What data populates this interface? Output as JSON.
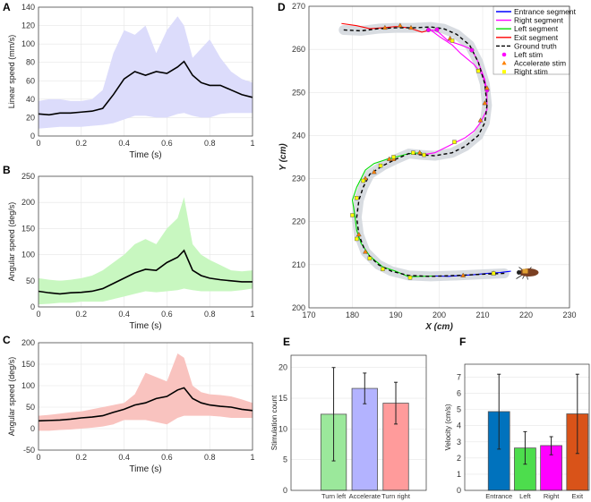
{
  "chart_data": [
    {
      "panel": "A",
      "type": "line",
      "xlabel": "Time (s)",
      "ylabel": "Linear speed (mm/s)",
      "xlim": [
        0,
        1
      ],
      "ylim": [
        0,
        140
      ],
      "xticks": [
        0,
        0.2,
        0.4,
        0.6,
        0.8,
        1
      ],
      "yticks": [
        0,
        20,
        40,
        60,
        80,
        100,
        120,
        140
      ],
      "grid": true,
      "band_color": "#dcdcfb",
      "line_color": "#000000",
      "x": [
        0,
        0.05,
        0.1,
        0.15,
        0.2,
        0.25,
        0.3,
        0.35,
        0.4,
        0.45,
        0.5,
        0.55,
        0.6,
        0.65,
        0.68,
        0.72,
        0.76,
        0.8,
        0.85,
        0.9,
        0.95,
        1
      ],
      "mean": [
        24,
        23,
        25,
        25,
        26,
        27,
        30,
        45,
        62,
        70,
        66,
        70,
        68,
        75,
        81,
        66,
        58,
        55,
        55,
        50,
        45,
        42
      ],
      "upper": [
        38,
        40,
        40,
        38,
        38,
        40,
        50,
        90,
        115,
        110,
        120,
        90,
        115,
        130,
        120,
        85,
        95,
        105,
        85,
        70,
        62,
        58
      ],
      "lower": [
        8,
        9,
        10,
        10,
        10,
        11,
        12,
        14,
        18,
        22,
        22,
        20,
        20,
        24,
        25,
        22,
        20,
        20,
        24,
        25,
        25,
        25
      ]
    },
    {
      "panel": "B",
      "type": "line",
      "xlabel": "Time (s)",
      "ylabel": "Angular speed (deg/s)",
      "xlim": [
        0,
        1
      ],
      "ylim": [
        0,
        250
      ],
      "xticks": [
        0,
        0.2,
        0.4,
        0.6,
        0.8,
        1
      ],
      "yticks": [
        0,
        50,
        100,
        150,
        200,
        250
      ],
      "grid": true,
      "band_color": "#c8f7c0",
      "line_color": "#000000",
      "x": [
        0,
        0.05,
        0.1,
        0.15,
        0.2,
        0.25,
        0.3,
        0.35,
        0.4,
        0.45,
        0.5,
        0.55,
        0.6,
        0.65,
        0.68,
        0.72,
        0.76,
        0.8,
        0.85,
        0.9,
        0.95,
        1
      ],
      "mean": [
        30,
        27,
        25,
        27,
        28,
        30,
        35,
        45,
        55,
        65,
        72,
        70,
        85,
        95,
        108,
        70,
        60,
        55,
        52,
        50,
        48,
        48
      ],
      "upper": [
        55,
        52,
        50,
        52,
        55,
        60,
        70,
        85,
        100,
        120,
        130,
        120,
        150,
        170,
        210,
        120,
        100,
        90,
        80,
        70,
        68,
        70
      ],
      "lower": [
        5,
        6,
        8,
        8,
        10,
        10,
        10,
        15,
        20,
        25,
        30,
        28,
        30,
        32,
        35,
        32,
        30,
        30,
        30,
        30,
        32,
        35
      ]
    },
    {
      "panel": "C",
      "type": "line",
      "xlabel": "Time (s)",
      "ylabel": "Angular speed (deg/s)",
      "xlim": [
        0,
        1
      ],
      "ylim": [
        -50,
        200
      ],
      "xticks": [
        0,
        0.2,
        0.4,
        0.6,
        0.8,
        1
      ],
      "yticks": [
        -50,
        0,
        50,
        100,
        150,
        200
      ],
      "grid": true,
      "band_color": "#f9c3bf",
      "line_color": "#000000",
      "x": [
        0,
        0.05,
        0.1,
        0.15,
        0.2,
        0.25,
        0.3,
        0.35,
        0.4,
        0.45,
        0.5,
        0.55,
        0.6,
        0.65,
        0.68,
        0.72,
        0.76,
        0.8,
        0.85,
        0.9,
        0.95,
        1
      ],
      "mean": [
        18,
        19,
        20,
        22,
        25,
        27,
        30,
        38,
        45,
        55,
        60,
        70,
        75,
        90,
        95,
        70,
        60,
        55,
        52,
        50,
        45,
        42
      ],
      "upper": [
        30,
        32,
        35,
        38,
        40,
        45,
        50,
        55,
        60,
        80,
        130,
        120,
        110,
        175,
        165,
        100,
        85,
        80,
        78,
        75,
        68,
        60
      ],
      "lower": [
        -5,
        -5,
        -3,
        -2,
        0,
        2,
        5,
        10,
        20,
        20,
        20,
        15,
        10,
        25,
        30,
        30,
        30,
        30,
        28,
        25,
        25,
        25
      ]
    },
    {
      "panel": "D",
      "type": "line",
      "xlabel": "X (cm)",
      "ylabel": "Y (cm)",
      "xlim": [
        170,
        230
      ],
      "ylim": [
        200,
        270
      ],
      "xticks": [
        170,
        180,
        190,
        200,
        210,
        220,
        230
      ],
      "yticks": [
        200,
        210,
        220,
        230,
        240,
        250,
        260,
        270
      ],
      "grid": true,
      "legend_position": "top-right",
      "ground_truth": {
        "name": "Ground truth",
        "color": "#000000",
        "x": [
          178,
          182,
          186,
          190,
          194,
          198,
          201,
          204,
          207,
          209,
          210.5,
          211,
          210.5,
          209,
          206,
          203,
          199,
          196,
          193,
          190,
          187,
          184,
          182.5,
          181.5,
          181,
          181.5,
          183,
          186,
          189,
          193,
          198,
          204,
          210,
          215
        ],
        "y": [
          264.5,
          264.3,
          264.8,
          265,
          265,
          265.2,
          264.8,
          263.5,
          261,
          257,
          252,
          247,
          243,
          240,
          237.5,
          236,
          235.3,
          235.5,
          235.8,
          234.5,
          233,
          231,
          228,
          225,
          221,
          217,
          213,
          210,
          208.5,
          207.5,
          207.3,
          207.5,
          207.8,
          208
        ]
      },
      "segments": [
        {
          "name": "Entrance segment",
          "color": "#0000ff",
          "x": [
            216.5,
            214,
            211,
            208,
            205,
            202,
            199
          ],
          "y": [
            208.5,
            208.2,
            208,
            207.7,
            207.5,
            207.3,
            207.4
          ]
        },
        {
          "name": "Right segment",
          "color": "#ff00ff",
          "x": [
            196,
            199,
            202,
            204,
            206,
            208,
            209.5,
            211,
            211,
            210,
            208,
            205,
            203,
            200,
            198,
            199.5,
            202,
            205,
            207.5,
            209,
            210.5,
            211
          ],
          "y": [
            235.5,
            236,
            237.5,
            238.5,
            239.5,
            241,
            243,
            246,
            250,
            254,
            256.5,
            259,
            261,
            263,
            264.5,
            264.3,
            262,
            261,
            260,
            257,
            253,
            250
          ]
        },
        {
          "name": "Left segment",
          "color": "#00dd00",
          "x": [
            199,
            196,
            193,
            190,
            187,
            184,
            182,
            181,
            180.5,
            180,
            181,
            182,
            183,
            185,
            188,
            190,
            193,
            196
          ],
          "y": [
            207.4,
            207.3,
            207.2,
            208.5,
            209.5,
            212,
            215,
            218,
            222,
            225,
            228,
            230,
            232,
            233.5,
            234.5,
            235,
            235.8,
            236
          ]
        },
        {
          "name": "Exit segment",
          "color": "#ff0000",
          "x": [
            198,
            196,
            193,
            190,
            187,
            184,
            181,
            177.5
          ],
          "y": [
            264.5,
            264,
            265,
            265.3,
            265,
            264.8,
            265.5,
            266
          ]
        }
      ],
      "markers": [
        {
          "name": "Left stim",
          "color": "#ff00ff",
          "shape": "circle",
          "x": [
            197.5,
            199.5,
            207.5,
            211
          ],
          "y": [
            264.5,
            264.6,
            259.8,
            250.5
          ]
        },
        {
          "name": "Accelerate stim",
          "color": "#ff8000",
          "shape": "triangle",
          "x": [
            187.5,
            191,
            193.5,
            202.5,
            211,
            210.5,
            209.5,
            195.5,
            188.5,
            185,
            183,
            181.5,
            183,
            189.5,
            205.5,
            212.5
          ],
          "y": [
            265,
            265.5,
            265,
            262.5,
            251,
            247.5,
            243.5,
            236,
            234.5,
            231.5,
            230,
            217,
            213,
            234.5,
            207.5,
            208
          ]
        },
        {
          "name": "Right stim",
          "color": "#ffff00",
          "shape": "square",
          "x": [
            203,
            209,
            203.5,
            194,
            196.5,
            189.5,
            186.5,
            182.5,
            181,
            180,
            181,
            184,
            187,
            193.3,
            212.5
          ],
          "y": [
            262,
            255,
            238.5,
            236,
            235.5,
            235,
            233,
            229.5,
            225.5,
            221.5,
            216,
            211.5,
            209,
            207,
            208
          ]
        }
      ]
    },
    {
      "panel": "E",
      "type": "bar",
      "ylabel": "Stimulation count",
      "ylim": [
        0,
        22
      ],
      "yticks": [
        0,
        5,
        10,
        15,
        20
      ],
      "grid": true,
      "categories": [
        "Turn left",
        "Accelerate",
        "Turn right"
      ],
      "values": [
        12.4,
        16.6,
        14.2
      ],
      "err_low": [
        4.8,
        14.1,
        10.8
      ],
      "err_high": [
        20.0,
        19.1,
        17.6
      ],
      "colors": [
        "#9be89b",
        "#b3b3ff",
        "#ff9b9b"
      ]
    },
    {
      "panel": "F",
      "type": "bar",
      "ylabel": "Velocity (cm/s)",
      "ylim": [
        0,
        7.8
      ],
      "yticks": [
        0,
        1,
        2,
        3,
        4,
        5,
        6,
        7
      ],
      "grid": true,
      "categories": [
        "Entrance",
        "Left",
        "Right",
        "Exit"
      ],
      "values": [
        4.87,
        2.62,
        2.77,
        4.73
      ],
      "err_low": [
        2.55,
        1.62,
        2.2,
        2.28
      ],
      "err_high": [
        7.18,
        3.63,
        3.32,
        7.18
      ],
      "colors": [
        "#0072bd",
        "#4ddd4d",
        "#ff00ff",
        "#d95319"
      ]
    }
  ],
  "panel_letters": [
    "A",
    "B",
    "C",
    "D",
    "E",
    "F"
  ]
}
